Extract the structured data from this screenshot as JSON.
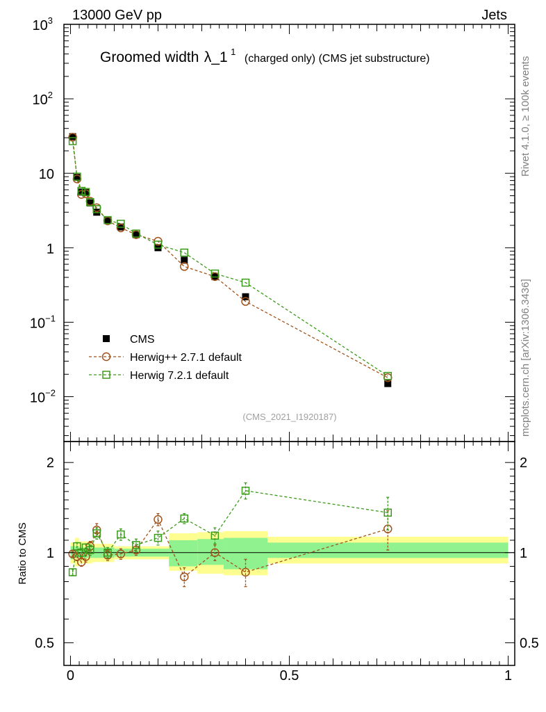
{
  "header": {
    "left": "13000 GeV pp",
    "right": "Jets"
  },
  "title": {
    "main": "Groomed width",
    "lambda": "λ_1",
    "sup": "1",
    "sub": "(charged only) (CMS jet substructure)"
  },
  "side_labels": {
    "rivet": "Rivet 4.1.0, ≥ 100k events",
    "mcplots": "mcplots.cern.ch [arXiv:1306.3436]"
  },
  "analysis_id": "(CMS_2021_I1920187)",
  "legend": [
    {
      "label": "CMS",
      "color": "#000000",
      "marker": "filled-square"
    },
    {
      "label": "Herwig++ 2.7.1 default",
      "color": "#a0521b",
      "marker": "open-circle"
    },
    {
      "label": "Herwig 7.2.1 default",
      "color": "#3a9a1a",
      "marker": "open-square"
    }
  ],
  "chart_data": [
    {
      "type": "scatter",
      "panel": "main",
      "yscale": "log",
      "ylim": [
        0.0025,
        1000
      ],
      "xlim": [
        -0.015,
        1.015
      ],
      "yticks": [
        {
          "value": 0.01,
          "label": "10",
          "sup": "−2"
        },
        {
          "value": 0.1,
          "label": "10",
          "sup": "−1"
        },
        {
          "value": 1,
          "label": "1",
          "sup": ""
        },
        {
          "value": 10,
          "label": "10",
          "sup": ""
        },
        {
          "value": 100,
          "label": "10",
          "sup": "2"
        },
        {
          "value": 1000,
          "label": "10",
          "sup": "3"
        }
      ],
      "x": [
        0.005,
        0.015,
        0.025,
        0.035,
        0.045,
        0.06,
        0.085,
        0.115,
        0.15,
        0.2,
        0.26,
        0.33,
        0.4,
        0.725
      ],
      "series": [
        {
          "name": "CMS",
          "values": [
            31,
            8.8,
            5.6,
            5.5,
            4.0,
            3.0,
            2.35,
            1.9,
            1.5,
            1.0,
            0.68,
            0.41,
            0.22,
            0.015
          ]
        },
        {
          "name": "Herwig++ 2.7.1 default",
          "values": [
            30.5,
            8.4,
            5.2,
            5.3,
            4.2,
            3.45,
            2.3,
            1.85,
            1.5,
            1.22,
            0.56,
            0.41,
            0.19,
            0.018
          ]
        },
        {
          "name": "Herwig 7.2.1 default",
          "values": [
            27,
            9.0,
            5.8,
            5.6,
            4.1,
            3.3,
            2.35,
            2.1,
            1.55,
            1.1,
            0.86,
            0.45,
            0.34,
            0.019
          ]
        }
      ]
    },
    {
      "type": "scatter",
      "panel": "ratio",
      "ylabel": "Ratio to CMS",
      "yscale": "log",
      "ylim": [
        0.42,
        2.35
      ],
      "xlim": [
        -0.015,
        1.015
      ],
      "yticks": [
        {
          "value": 0.5,
          "label": "0.5"
        },
        {
          "value": 1,
          "label": "1"
        },
        {
          "value": 2,
          "label": "2"
        }
      ],
      "xticks": [
        {
          "value": 0,
          "label": "0"
        },
        {
          "value": 0.5,
          "label": "0.5"
        },
        {
          "value": 1,
          "label": "1"
        }
      ],
      "bands": [
        {
          "x0": 0.0,
          "x1": 0.01,
          "inner": [
            0.95,
            1.05
          ],
          "outer": [
            0.92,
            1.08
          ]
        },
        {
          "x0": 0.01,
          "x1": 0.02,
          "inner": [
            0.96,
            1.05
          ],
          "outer": [
            0.9,
            1.12
          ]
        },
        {
          "x0": 0.02,
          "x1": 0.05,
          "inner": [
            0.96,
            1.04
          ],
          "outer": [
            0.92,
            1.09
          ]
        },
        {
          "x0": 0.05,
          "x1": 0.1,
          "inner": [
            0.96,
            1.04
          ],
          "outer": [
            0.93,
            1.07
          ]
        },
        {
          "x0": 0.1,
          "x1": 0.225,
          "inner": [
            0.97,
            1.03
          ],
          "outer": [
            0.95,
            1.05
          ]
        },
        {
          "x0": 0.225,
          "x1": 0.29,
          "inner": [
            0.9,
            1.1
          ],
          "outer": [
            0.87,
            1.16
          ]
        },
        {
          "x0": 0.29,
          "x1": 0.35,
          "inner": [
            0.91,
            1.11
          ],
          "outer": [
            0.85,
            1.17
          ]
        },
        {
          "x0": 0.35,
          "x1": 0.45,
          "inner": [
            0.88,
            1.12
          ],
          "outer": [
            0.84,
            1.18
          ]
        },
        {
          "x0": 0.45,
          "x1": 1.0,
          "inner": [
            0.96,
            1.08
          ],
          "outer": [
            0.92,
            1.13
          ]
        }
      ],
      "x": [
        0.005,
        0.015,
        0.025,
        0.035,
        0.045,
        0.06,
        0.085,
        0.115,
        0.15,
        0.2,
        0.26,
        0.33,
        0.4,
        0.725
      ],
      "series": [
        {
          "name": "Herwig++ 2.7.1 default",
          "values": [
            0.99,
            0.97,
            0.93,
            0.97,
            1.05,
            1.19,
            0.98,
            0.99,
            1.02,
            1.29,
            0.83,
            1.0,
            0.86,
            1.2
          ],
          "err_up": [
            0.02,
            0.03,
            0.03,
            0.04,
            0.04,
            0.06,
            0.04,
            0.04,
            0.04,
            0.06,
            0.06,
            0.06,
            0.09,
            0.18
          ],
          "err_dn": [
            0.02,
            0.03,
            0.03,
            0.04,
            0.04,
            0.06,
            0.04,
            0.04,
            0.04,
            0.06,
            0.06,
            0.06,
            0.09,
            0.18
          ]
        },
        {
          "name": "Herwig 7.2.1 default",
          "values": [
            0.86,
            1.05,
            1.0,
            1.04,
            1.02,
            1.16,
            1.0,
            1.15,
            1.06,
            1.12,
            1.3,
            1.14,
            1.61,
            1.36
          ],
          "err_up": [
            0.02,
            0.03,
            0.03,
            0.03,
            0.04,
            0.05,
            0.04,
            0.05,
            0.05,
            0.06,
            0.05,
            0.07,
            0.1,
            0.17
          ],
          "err_dn": [
            0.02,
            0.03,
            0.03,
            0.03,
            0.04,
            0.05,
            0.04,
            0.05,
            0.05,
            0.06,
            0.05,
            0.07,
            0.1,
            0.17
          ]
        }
      ]
    }
  ]
}
